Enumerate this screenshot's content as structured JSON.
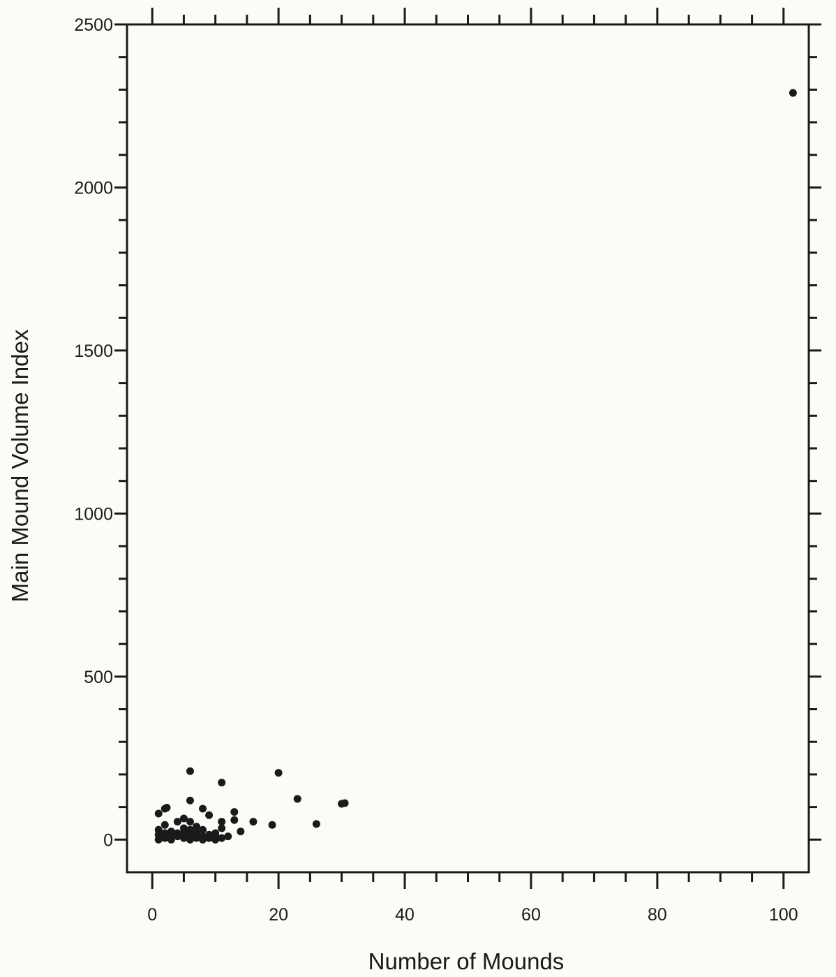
{
  "chart_data": {
    "type": "scatter",
    "title": "",
    "xlabel": "Number of Mounds",
    "ylabel": "Main Mound Volume Index",
    "xlim": [
      -4,
      104
    ],
    "ylim": [
      -100,
      2500
    ],
    "x_ticks": [
      0,
      20,
      40,
      60,
      80,
      100
    ],
    "x_tick_labels": [
      "0",
      "20",
      "40",
      "60",
      "80",
      "100"
    ],
    "x_minor_step": 5,
    "y_ticks": [
      0,
      500,
      1000,
      1500,
      2000,
      2500
    ],
    "y_tick_labels": [
      "0",
      "500",
      "1000",
      "1500",
      "2000",
      "2500"
    ],
    "y_minor_step": 100,
    "grid": false,
    "legend": "none",
    "marker_color": "#1a1a1a",
    "points": [
      {
        "x": 1,
        "y": 0
      },
      {
        "x": 1,
        "y": 15
      },
      {
        "x": 1,
        "y": 30
      },
      {
        "x": 1,
        "y": 80
      },
      {
        "x": 2,
        "y": 5
      },
      {
        "x": 2,
        "y": 20
      },
      {
        "x": 2,
        "y": 45
      },
      {
        "x": 2,
        "y": 95
      },
      {
        "x": 2.3,
        "y": 98
      },
      {
        "x": 3,
        "y": 0
      },
      {
        "x": 3,
        "y": 15
      },
      {
        "x": 3,
        "y": 25
      },
      {
        "x": 4,
        "y": 10
      },
      {
        "x": 4,
        "y": 20
      },
      {
        "x": 4,
        "y": 55
      },
      {
        "x": 5,
        "y": 5
      },
      {
        "x": 5,
        "y": 20
      },
      {
        "x": 5,
        "y": 35
      },
      {
        "x": 5,
        "y": 65
      },
      {
        "x": 6,
        "y": 0
      },
      {
        "x": 6,
        "y": 15
      },
      {
        "x": 6,
        "y": 30
      },
      {
        "x": 6,
        "y": 55
      },
      {
        "x": 6,
        "y": 120
      },
      {
        "x": 6,
        "y": 210
      },
      {
        "x": 7,
        "y": 5
      },
      {
        "x": 7,
        "y": 20
      },
      {
        "x": 7,
        "y": 40
      },
      {
        "x": 8,
        "y": 0
      },
      {
        "x": 8,
        "y": 10
      },
      {
        "x": 8,
        "y": 30
      },
      {
        "x": 8,
        "y": 95
      },
      {
        "x": 9,
        "y": 5
      },
      {
        "x": 9,
        "y": 15
      },
      {
        "x": 9,
        "y": 75
      },
      {
        "x": 10,
        "y": 0
      },
      {
        "x": 10,
        "y": 10
      },
      {
        "x": 10,
        "y": 20
      },
      {
        "x": 11,
        "y": 5
      },
      {
        "x": 11,
        "y": 35
      },
      {
        "x": 11,
        "y": 55
      },
      {
        "x": 11,
        "y": 175
      },
      {
        "x": 12,
        "y": 10
      },
      {
        "x": 13,
        "y": 60
      },
      {
        "x": 13,
        "y": 85
      },
      {
        "x": 14,
        "y": 25
      },
      {
        "x": 16,
        "y": 55
      },
      {
        "x": 19,
        "y": 45
      },
      {
        "x": 20,
        "y": 205
      },
      {
        "x": 23,
        "y": 125
      },
      {
        "x": 26,
        "y": 48
      },
      {
        "x": 30,
        "y": 110
      },
      {
        "x": 30.5,
        "y": 112
      },
      {
        "x": 101.5,
        "y": 2290
      }
    ]
  }
}
